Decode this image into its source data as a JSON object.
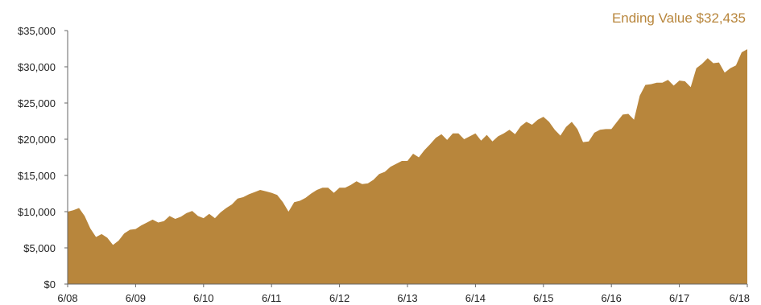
{
  "colors": {
    "area": "#b8863c",
    "axis": "#666666",
    "text": "#222222",
    "accent": "#b8863c"
  },
  "annotation": {
    "label": "Ending Value $32,435"
  },
  "chart_data": {
    "type": "area",
    "title": "",
    "xlabel": "",
    "ylabel": "",
    "ylim": [
      0,
      35000
    ],
    "xlim": [
      "2008-06",
      "2018-06"
    ],
    "grid": false,
    "legend": "none",
    "y_ticks": [
      {
        "value": 0,
        "label": "$0"
      },
      {
        "value": 5000,
        "label": "$5,000"
      },
      {
        "value": 10000,
        "label": "$10,000"
      },
      {
        "value": 15000,
        "label": "$15,000"
      },
      {
        "value": 20000,
        "label": "$20,000"
      },
      {
        "value": 25000,
        "label": "$25,000"
      },
      {
        "value": 30000,
        "label": "$30,000"
      },
      {
        "value": 35000,
        "label": "$35,000"
      }
    ],
    "x_ticks": [
      {
        "value": "2008-06",
        "label": "6/08"
      },
      {
        "value": "2009-06",
        "label": "6/09"
      },
      {
        "value": "2010-06",
        "label": "6/10"
      },
      {
        "value": "2011-06",
        "label": "6/11"
      },
      {
        "value": "2012-06",
        "label": "6/12"
      },
      {
        "value": "2013-06",
        "label": "6/13"
      },
      {
        "value": "2014-06",
        "label": "6/14"
      },
      {
        "value": "2015-06",
        "label": "6/15"
      },
      {
        "value": "2016-06",
        "label": "6/16"
      },
      {
        "value": "2017-06",
        "label": "6/17"
      },
      {
        "value": "2018-06",
        "label": "6/18"
      }
    ],
    "series": [
      {
        "points": [
          [
            "2008-06",
            10000
          ],
          [
            "2008-07",
            10200
          ],
          [
            "2008-08",
            10500
          ],
          [
            "2008-09",
            9400
          ],
          [
            "2008-10",
            7700
          ],
          [
            "2008-11",
            6500
          ],
          [
            "2008-12",
            6900
          ],
          [
            "2009-01",
            6400
          ],
          [
            "2009-02",
            5400
          ],
          [
            "2009-03",
            6000
          ],
          [
            "2009-04",
            7000
          ],
          [
            "2009-05",
            7500
          ],
          [
            "2009-06",
            7600
          ],
          [
            "2009-07",
            8100
          ],
          [
            "2009-08",
            8500
          ],
          [
            "2009-09",
            8900
          ],
          [
            "2009-10",
            8500
          ],
          [
            "2009-11",
            8700
          ],
          [
            "2009-12",
            9400
          ],
          [
            "2010-01",
            9000
          ],
          [
            "2010-02",
            9300
          ],
          [
            "2010-03",
            9800
          ],
          [
            "2010-04",
            10100
          ],
          [
            "2010-05",
            9400
          ],
          [
            "2010-06",
            9100
          ],
          [
            "2010-07",
            9700
          ],
          [
            "2010-08",
            9100
          ],
          [
            "2010-09",
            9900
          ],
          [
            "2010-10",
            10500
          ],
          [
            "2010-11",
            11000
          ],
          [
            "2010-12",
            11800
          ],
          [
            "2011-01",
            12000
          ],
          [
            "2011-02",
            12400
          ],
          [
            "2011-03",
            12700
          ],
          [
            "2011-04",
            13000
          ],
          [
            "2011-05",
            12800
          ],
          [
            "2011-06",
            12600
          ],
          [
            "2011-07",
            12300
          ],
          [
            "2011-08",
            11300
          ],
          [
            "2011-09",
            10000
          ],
          [
            "2011-10",
            11300
          ],
          [
            "2011-11",
            11500
          ],
          [
            "2011-12",
            11900
          ],
          [
            "2012-01",
            12500
          ],
          [
            "2012-02",
            13000
          ],
          [
            "2012-03",
            13300
          ],
          [
            "2012-04",
            13300
          ],
          [
            "2012-05",
            12600
          ],
          [
            "2012-06",
            13300
          ],
          [
            "2012-07",
            13300
          ],
          [
            "2012-08",
            13700
          ],
          [
            "2012-09",
            14200
          ],
          [
            "2012-10",
            13800
          ],
          [
            "2012-11",
            13900
          ],
          [
            "2012-12",
            14400
          ],
          [
            "2013-01",
            15200
          ],
          [
            "2013-02",
            15500
          ],
          [
            "2013-03",
            16200
          ],
          [
            "2013-04",
            16600
          ],
          [
            "2013-05",
            17000
          ],
          [
            "2013-06",
            17000
          ],
          [
            "2013-07",
            18000
          ],
          [
            "2013-08",
            17500
          ],
          [
            "2013-09",
            18500
          ],
          [
            "2013-10",
            19300
          ],
          [
            "2013-11",
            20200
          ],
          [
            "2013-12",
            20700
          ],
          [
            "2014-01",
            19900
          ],
          [
            "2014-02",
            20800
          ],
          [
            "2014-03",
            20800
          ],
          [
            "2014-04",
            20000
          ],
          [
            "2014-05",
            20400
          ],
          [
            "2014-06",
            20800
          ],
          [
            "2014-07",
            19800
          ],
          [
            "2014-08",
            20600
          ],
          [
            "2014-09",
            19700
          ],
          [
            "2014-10",
            20400
          ],
          [
            "2014-11",
            20800
          ],
          [
            "2014-12",
            21300
          ],
          [
            "2015-01",
            20700
          ],
          [
            "2015-02",
            21800
          ],
          [
            "2015-03",
            22400
          ],
          [
            "2015-04",
            22000
          ],
          [
            "2015-05",
            22700
          ],
          [
            "2015-06",
            23100
          ],
          [
            "2015-07",
            22400
          ],
          [
            "2015-08",
            21300
          ],
          [
            "2015-09",
            20500
          ],
          [
            "2015-10",
            21700
          ],
          [
            "2015-11",
            22400
          ],
          [
            "2015-12",
            21400
          ],
          [
            "2016-01",
            19600
          ],
          [
            "2016-02",
            19700
          ],
          [
            "2016-03",
            20900
          ],
          [
            "2016-04",
            21300
          ],
          [
            "2016-05",
            21400
          ],
          [
            "2016-06",
            21400
          ],
          [
            "2016-07",
            22400
          ],
          [
            "2016-08",
            23400
          ],
          [
            "2016-09",
            23500
          ],
          [
            "2016-10",
            22700
          ],
          [
            "2016-11",
            26000
          ],
          [
            "2016-12",
            27500
          ],
          [
            "2017-01",
            27600
          ],
          [
            "2017-02",
            27800
          ],
          [
            "2017-03",
            27800
          ],
          [
            "2017-04",
            28200
          ],
          [
            "2017-05",
            27400
          ],
          [
            "2017-06",
            28100
          ],
          [
            "2017-07",
            28000
          ],
          [
            "2017-08",
            27200
          ],
          [
            "2017-09",
            29800
          ],
          [
            "2017-10",
            30400
          ],
          [
            "2017-11",
            31200
          ],
          [
            "2017-12",
            30500
          ],
          [
            "2018-01",
            30600
          ],
          [
            "2018-02",
            29200
          ],
          [
            "2018-03",
            29800
          ],
          [
            "2018-04",
            30200
          ],
          [
            "2018-05",
            32000
          ],
          [
            "2018-06",
            32435
          ]
        ]
      }
    ]
  }
}
